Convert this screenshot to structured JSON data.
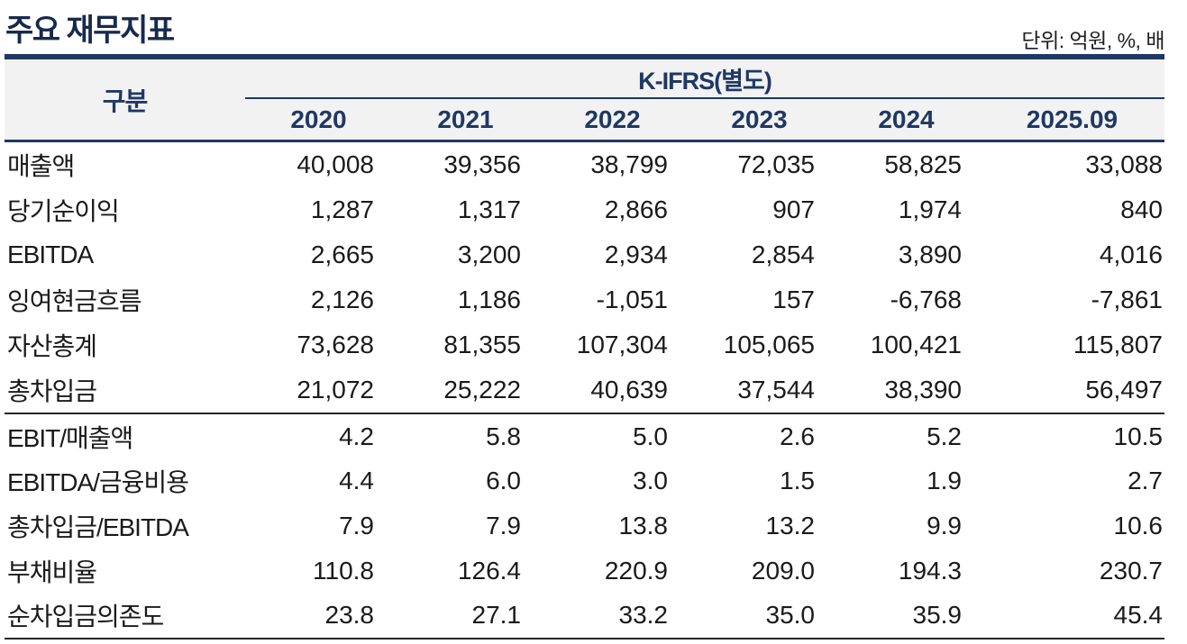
{
  "title": "주요 재무지표",
  "unit_note": "단위: 억원, %, 배",
  "colors": {
    "navy": "#1f3864",
    "title": "#172a4d",
    "band": "#f2f2f2",
    "dark": "#262626"
  },
  "table": {
    "category_header": "구분",
    "group_header": "K-IFRS(별도)",
    "years": [
      "2020",
      "2021",
      "2022",
      "2023",
      "2024",
      "2025.09"
    ],
    "sections": [
      {
        "rows": [
          {
            "label": "매출액",
            "values": [
              "40,008",
              "39,356",
              "38,799",
              "72,035",
              "58,825",
              "33,088"
            ]
          },
          {
            "label": "당기순이익",
            "values": [
              "1,287",
              "1,317",
              "2,866",
              "907",
              "1,974",
              "840"
            ]
          },
          {
            "label": "EBITDA",
            "values": [
              "2,665",
              "3,200",
              "2,934",
              "2,854",
              "3,890",
              "4,016"
            ]
          },
          {
            "label": "잉여현금흐름",
            "values": [
              "2,126",
              "1,186",
              "-1,051",
              "157",
              "-6,768",
              "-7,861"
            ]
          },
          {
            "label": "자산총계",
            "values": [
              "73,628",
              "81,355",
              "107,304",
              "105,065",
              "100,421",
              "115,807"
            ]
          },
          {
            "label": "총차입금",
            "values": [
              "21,072",
              "25,222",
              "40,639",
              "37,544",
              "38,390",
              "56,497"
            ]
          }
        ]
      },
      {
        "rows": [
          {
            "label": "EBIT/매출액",
            "values": [
              "4.2",
              "5.8",
              "5.0",
              "2.6",
              "5.2",
              "10.5"
            ]
          },
          {
            "label": "EBITDA/금융비용",
            "values": [
              "4.4",
              "6.0",
              "3.0",
              "1.5",
              "1.9",
              "2.7"
            ]
          },
          {
            "label": "총차입금/EBITDA",
            "values": [
              "7.9",
              "7.9",
              "13.8",
              "13.2",
              "9.9",
              "10.6"
            ]
          },
          {
            "label": "부채비율",
            "values": [
              "110.8",
              "126.4",
              "220.9",
              "209.0",
              "194.3",
              "230.7"
            ]
          },
          {
            "label": "순차입금의존도",
            "values": [
              "23.8",
              "27.1",
              "33.2",
              "35.0",
              "35.9",
              "45.4"
            ]
          }
        ]
      }
    ]
  }
}
